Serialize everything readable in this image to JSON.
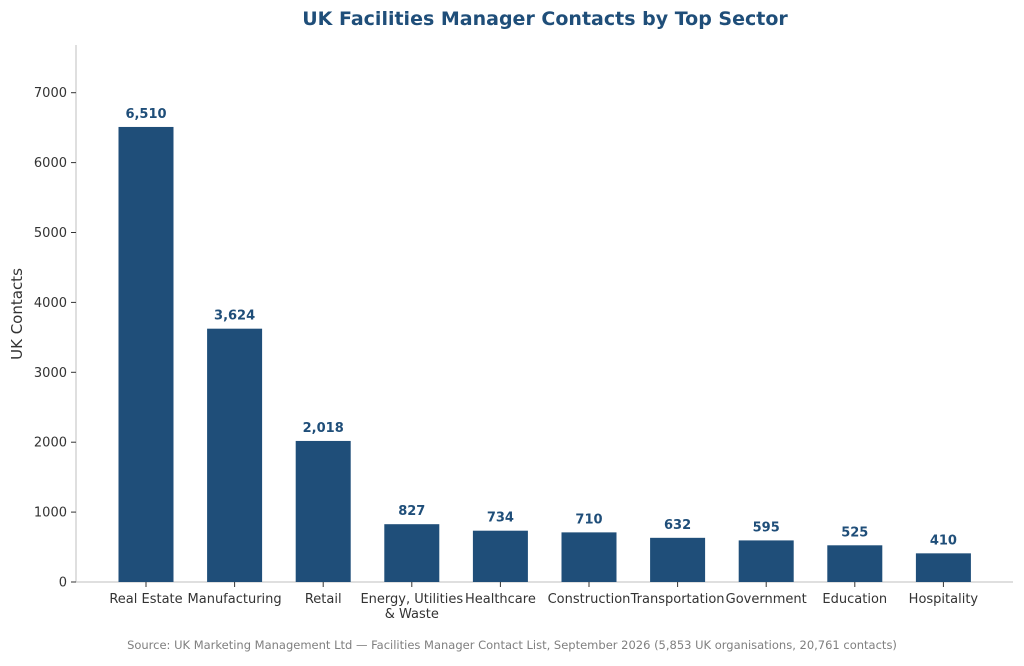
{
  "chart_data": {
    "type": "bar",
    "title": "UK Facilities Manager Contacts by Top Sector",
    "xlabel": "",
    "ylabel": "UK Contacts",
    "categories": [
      [
        "Real Estate"
      ],
      [
        "Manufacturing"
      ],
      [
        "Retail"
      ],
      [
        "Energy, Utilities",
        "& Waste"
      ],
      [
        "Healthcare"
      ],
      [
        "Construction"
      ],
      [
        "Transportation"
      ],
      [
        "Government"
      ],
      [
        "Education"
      ],
      [
        "Hospitality"
      ]
    ],
    "values": [
      6510,
      3624,
      2018,
      827,
      734,
      710,
      632,
      595,
      525,
      410
    ],
    "data_labels": [
      "6,510",
      "3,624",
      "2,018",
      "827",
      "734",
      "710",
      "632",
      "595",
      "525",
      "410"
    ],
    "yticks": [
      0,
      1000,
      2000,
      3000,
      4000,
      5000,
      6000,
      7000
    ],
    "ylim": [
      0,
      7700
    ],
    "grid": false,
    "legend": "none",
    "colors": {
      "bar": "#1f4e79",
      "title": "#1f4e79",
      "axis": "#bfbfbf",
      "text": "#333333",
      "source": "#7f7f7f"
    },
    "source": "Source: UK Marketing Management Ltd — Facilities Manager Contact List, September 2026 (5,853 UK organisations, 20,761 contacts)"
  }
}
